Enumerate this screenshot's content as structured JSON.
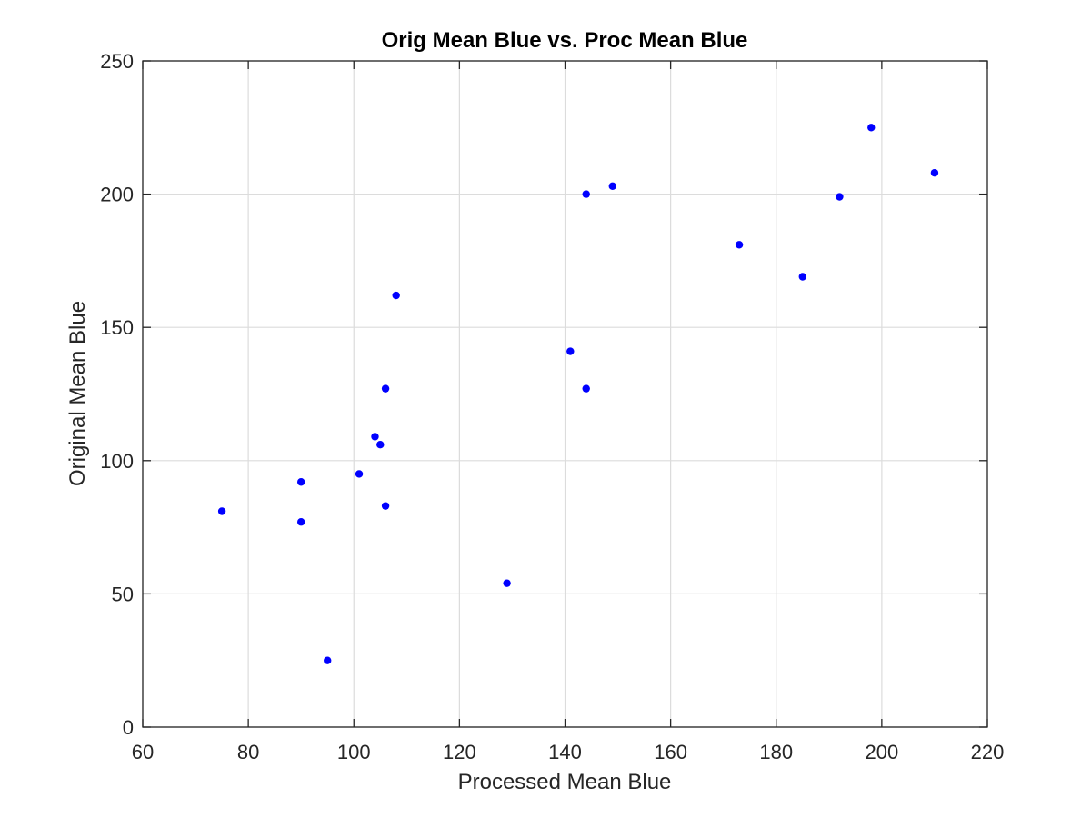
{
  "chart_data": {
    "type": "scatter",
    "title": "Orig Mean Blue vs. Proc Mean Blue",
    "xlabel": "Processed Mean Blue",
    "ylabel": "Original Mean Blue",
    "xlim": [
      60,
      220
    ],
    "ylim": [
      0,
      250
    ],
    "xticks": [
      60,
      80,
      100,
      120,
      140,
      160,
      180,
      200,
      220
    ],
    "yticks": [
      0,
      50,
      100,
      150,
      200,
      250
    ],
    "xtick_labels": [
      "60",
      "80",
      "100",
      "120",
      "140",
      "160",
      "180",
      "200",
      "220"
    ],
    "ytick_labels": [
      "0",
      "50",
      "100",
      "150",
      "200",
      "250"
    ],
    "grid": true,
    "marker_color": "#0000ff",
    "axis_color": "#262626",
    "grid_color": "#dcdcdc",
    "series": [
      {
        "points": [
          {
            "x": 75,
            "y": 81
          },
          {
            "x": 90,
            "y": 92
          },
          {
            "x": 90,
            "y": 77
          },
          {
            "x": 95,
            "y": 25
          },
          {
            "x": 101,
            "y": 95
          },
          {
            "x": 104,
            "y": 109
          },
          {
            "x": 105,
            "y": 106
          },
          {
            "x": 106,
            "y": 127
          },
          {
            "x": 106,
            "y": 83
          },
          {
            "x": 108,
            "y": 162
          },
          {
            "x": 129,
            "y": 54
          },
          {
            "x": 141,
            "y": 141
          },
          {
            "x": 144,
            "y": 127
          },
          {
            "x": 144,
            "y": 200
          },
          {
            "x": 149,
            "y": 203
          },
          {
            "x": 173,
            "y": 181
          },
          {
            "x": 185,
            "y": 169
          },
          {
            "x": 192,
            "y": 199
          },
          {
            "x": 198,
            "y": 225
          },
          {
            "x": 210,
            "y": 208
          }
        ]
      }
    ]
  }
}
